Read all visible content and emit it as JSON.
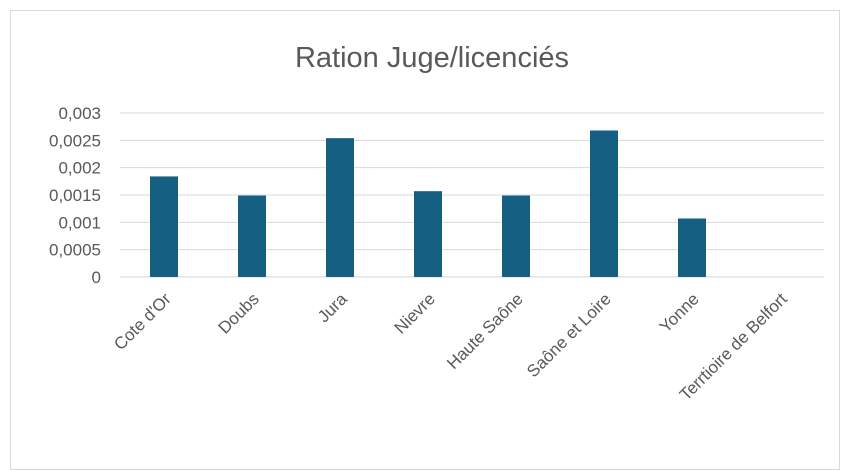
{
  "chart_data": {
    "type": "bar",
    "title": "Ration Juge/licenciés",
    "categories": [
      "Cote d'Or",
      "Doubs",
      "Jura",
      "Nievre",
      "Haute Saône",
      "Saône et Loire",
      "Yonne",
      "Terrtioire de Belfort"
    ],
    "values": [
      0.00184,
      0.00149,
      0.00254,
      0.00157,
      0.00149,
      0.00268,
      0.00107,
      0
    ],
    "ylim": [
      0,
      0.003
    ],
    "yticks": [
      "0",
      "0,0005",
      "0,001",
      "0,0015",
      "0,002",
      "0,0025",
      "0,003"
    ],
    "grid": true,
    "bar_color": "#156082"
  }
}
